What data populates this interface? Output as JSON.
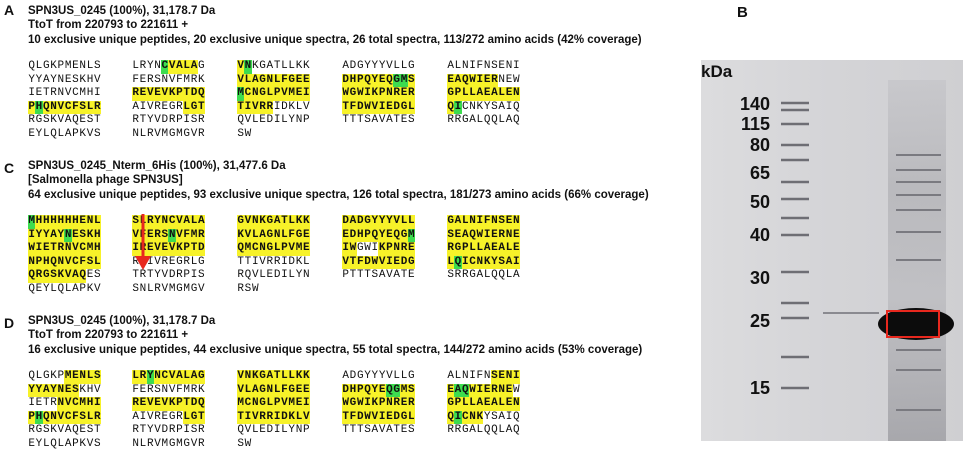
{
  "panels": [
    {
      "letter": "A",
      "header": [
        "SPN3US_0245 (100%), 31,178.7 Da",
        "TtoT from 220793 to 221611 +",
        "10 exclusive unique peptides, 20 exclusive unique spectra, 26 total spectra, 113/272 amino acids (42% coverage)"
      ],
      "rows": [
        [
          "QLGKPMENLS",
          "LRYNCVALAG",
          "VNKGATLLKK",
          "ADGYYYVLLG",
          "ALNIFNSENI"
        ],
        [
          "YYAYNESKHV",
          "FERSNVFMRK",
          "VLAGNLFGEE",
          "DHPQYEQGMS",
          "EAQWIERNEW"
        ],
        [
          "IETRNVCMHI",
          "REVEVKPTDQ",
          "MCNGLPVMEI",
          "WGWIKPNRER",
          "GPLLAEALEN"
        ],
        [
          "PHQNVCFSLR",
          "AIVREGRLGT",
          "TIVRRIDKLV",
          "TFDWVIEDGL",
          "QICNKYSAIQ"
        ],
        [
          "RGSKVAQEST",
          "RTYVDRPISR",
          "QVLEDILYNP",
          "TTTSAVATES",
          "RRGALQQLAQ"
        ],
        [
          "EYLQLAPKVS",
          "NLRVMGMGVR",
          "SW",
          "",
          ""
        ]
      ],
      "marks": [
        [
          "          ",
          "   .gyyyy ",
          "yg        ",
          "          ",
          "          "
        ],
        [
          "          ",
          "          ",
          "yyyyyyyyyy",
          "yyyyyyyggy",
          "yyyyyyy   "
        ],
        [
          "          ",
          "yyyyyyyyyy",
          "gyyyyyyyyy",
          "yyyyyyyyyy",
          "yyyyyyyyyy"
        ],
        [
          "ygyyyyyyyy",
          "       yyy",
          "yyyyy     ",
          "yyyyyyyyyy",
          "yg        "
        ],
        [
          "          ",
          "          ",
          "          ",
          "          ",
          "          "
        ],
        [
          "          ",
          "          ",
          "  ",
          "",
          ""
        ]
      ]
    },
    {
      "letter": "C",
      "header": [
        "SPN3US_0245_Nterm_6His (100%), 31,477.6 Da",
        "[Salmonella phage SPN3US]",
        "64 exclusive unique peptides, 93 exclusive unique spectra, 126 total spectra, 181/273 amino acids (66% coverage)"
      ],
      "rows": [
        [
          "MHHHHHHENL",
          "SLRYNCVALA",
          "GVNKGATLKK",
          "DADGYYYVLL",
          "GALNIFNSEN"
        ],
        [
          "IYYAYNESKH",
          "VFERSNVFMR",
          "KVLAGNLFGE",
          "EDHPQYEQGM",
          "SEAQWIERNE"
        ],
        [
          "WIETRNVCMH",
          "IREVEVKPTD",
          "QMCNGLPVME",
          "IWGWIKPNRE",
          "RGPLLAEALE"
        ],
        [
          "NPHQNVCFSL",
          "RAIVREGRLG",
          "TTIVRRIDKL",
          "VTFDWVIEDG",
          "LQICNKYSAI"
        ],
        [
          "QRGSKVAQES",
          "TRTYVDRPIS",
          "RQVLEDILYN",
          "PTTTSAVATE",
          "SRRGALQQLA"
        ],
        [
          "QEYLQLAPKV",
          "SNLRVMGMGV",
          "RSW",
          "",
          ""
        ]
      ],
      "marks": [
        [
          "gyyyyyyyyy",
          "yyyyyyyyyy",
          "yyyyyyyyyy",
          "yyyyyyyyyy",
          "yyyyyyyyyy"
        ],
        [
          "yyyyygyyyy",
          "yyyyygyyyy",
          "yyyyyyyyyy",
          "yyyyyyyyyg",
          "yyyyyyyyyy"
        ],
        [
          "yyyyyyyyyy",
          "yyyyyyyyyy",
          "yyyyyyyyyy",
          "yy   yyyyy",
          "yyyyyyyyyy"
        ],
        [
          "yyyyyyyyyy",
          "          ",
          "          ",
          "yyyyyyyyyy",
          "ygyyyyyyyy"
        ],
        [
          "yyyyyyyy  ",
          "          ",
          "          ",
          "          ",
          "          "
        ],
        [
          "          ",
          "          ",
          "   ",
          "",
          ""
        ]
      ]
    },
    {
      "letter": "D",
      "header": [
        "SPN3US_0245 (100%), 31,178.7 Da",
        "TtoT from 220793 to 221611 +",
        "16 exclusive unique peptides, 44 exclusive unique spectra, 55 total spectra, 144/272 amino acids (53% coverage)"
      ],
      "rows": [
        [
          "QLGKPMENLS",
          "LRYNCVALAG",
          "VNKGATLLKK",
          "ADGYYYVLLG",
          "ALNIFNSENI"
        ],
        [
          "YYAYNESKHV",
          "FERSNVFMRK",
          "VLAGNLFGEE",
          "DHPQYEQGMS",
          "EAQWIERNEW"
        ],
        [
          "IETRNVCMHI",
          "REVEVKPTDQ",
          "MCNGLPVMEI",
          "WGWIKPNRER",
          "GPLLAEALEN"
        ],
        [
          "PHQNVCFSLR",
          "AIVREGRLGT",
          "TIVRRIDKLV",
          "TFDWVIEDGL",
          "QICNKYSAIQ"
        ],
        [
          "RGSKVAQEST",
          "RTYVDRPISR",
          "QVLEDILYNP",
          "TTTSAVATES",
          "RRGALQQLAQ"
        ],
        [
          "EYLQLAPKVS",
          "NLRVMGMGVR",
          "SW",
          "",
          ""
        ]
      ],
      "marks": [
        [
          "     yyyyy",
          "yygyyyyyyy",
          "yyyyyyyyyy",
          "          ",
          "      yyyy"
        ],
        [
          "yyyyyyy   ",
          "          ",
          "yyyyyyyyyy",
          "yyyyyyggyy",
          "yggyyyyyy "
        ],
        [
          "    yyyyyy",
          "yyyyyyyyyy",
          "yyyyyyyyyy",
          "yyyyyyyyyy",
          "yyyyyyyyyy"
        ],
        [
          "ygyyyyyyyy",
          "       yyy",
          "yyyyyyyyyy",
          "yyyyyyyyyy",
          "ygyyy     "
        ],
        [
          "          ",
          "          ",
          "          ",
          "          ",
          "          "
        ],
        [
          "          ",
          "          ",
          "  ",
          "",
          ""
        ]
      ]
    }
  ],
  "gel": {
    "letter": "B",
    "unit_label": "kDa",
    "markers": [
      "140",
      "115",
      "80",
      "65",
      "50",
      "40",
      "30",
      "25",
      "15"
    ],
    "band_color": "#0c0c0c",
    "box_color": "#e8281e"
  },
  "colors": {
    "highlight_yellow": "#f7f229",
    "highlight_green": "#3ddc4f",
    "cleavage_arrow": "#e8281e"
  }
}
